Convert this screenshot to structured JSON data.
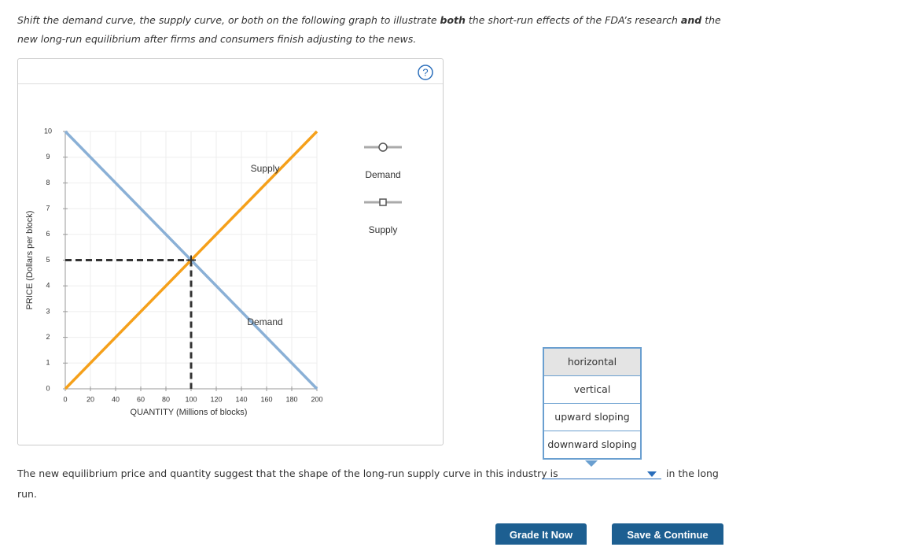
{
  "instruction": [
    "Shift the demand curve, the supply curve, or both on the following graph to illustrate ",
    "both",
    " the short-run effects of the FDA’s research ",
    "and",
    " the new long-run equilibrium after firms and consumers finish adjusting to the news."
  ],
  "chart_data": {
    "type": "line",
    "x_label": "QUANTITY (Millions of blocks)",
    "y_label": "PRICE (Dollars per block)",
    "xlim": [
      0,
      200
    ],
    "ylim": [
      0,
      10
    ],
    "xticks": [
      0,
      20,
      40,
      60,
      80,
      100,
      120,
      140,
      160,
      180,
      200
    ],
    "yticks": [
      0,
      1,
      2,
      3,
      4,
      5,
      6,
      7,
      8,
      9,
      10
    ],
    "grid": true,
    "series": [
      {
        "name": "Demand",
        "color": "#8ab0d6",
        "x": [
          0,
          200
        ],
        "values": [
          10,
          0
        ]
      },
      {
        "name": "Supply",
        "color": "#f5a01a",
        "x": [
          0,
          200
        ],
        "values": [
          0,
          10
        ]
      }
    ],
    "equilibrium": {
      "x": 100,
      "y": 5
    }
  },
  "question": {
    "before": "The new equilibrium price and quantity suggest that the shape of the long-run supply curve in this industry is",
    "after": "in the long",
    "after_wrap": "run."
  },
  "dropdown": {
    "options": [
      "horizontal",
      "vertical",
      "upward sloping",
      "downward sloping"
    ]
  },
  "buttons": [
    "Grade It Now",
    "Save & Continue"
  ]
}
